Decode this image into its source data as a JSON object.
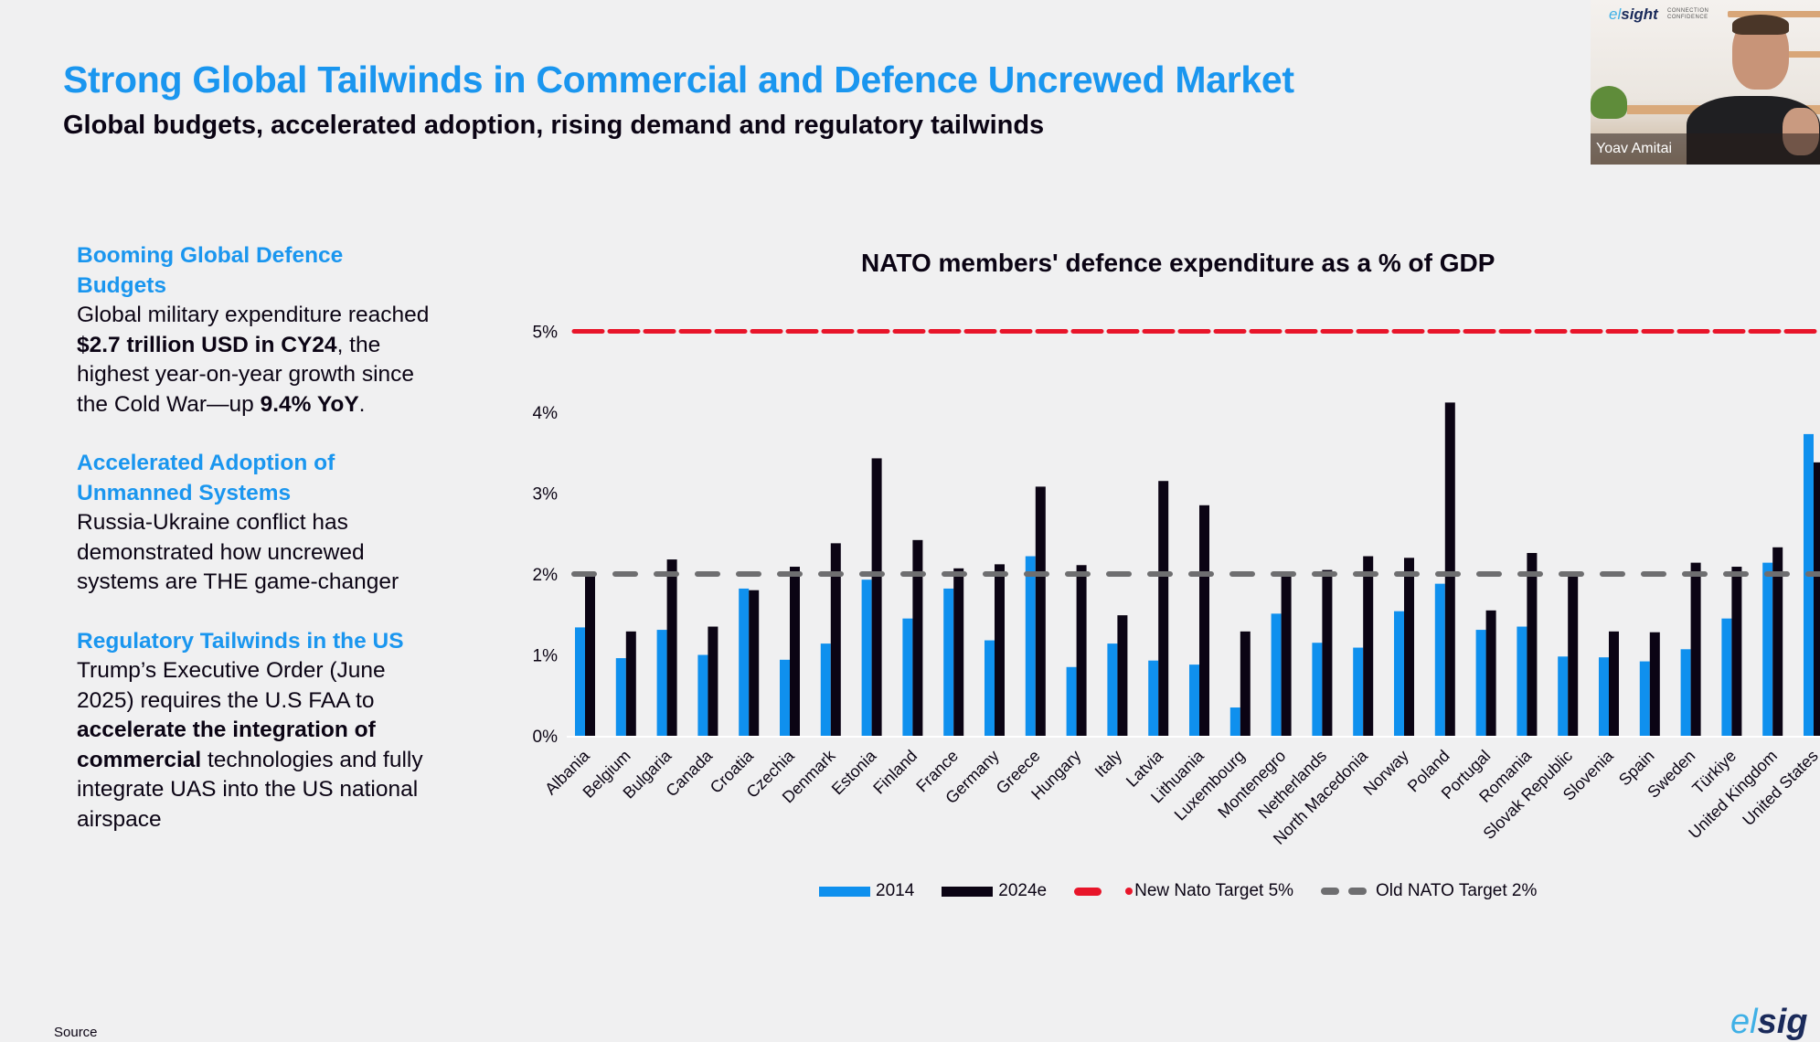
{
  "slide": {
    "title": "Strong Global Tailwinds in Commercial and Defence Uncrewed Market",
    "subtitle": "Global budgets, accelerated adoption, rising demand and regulatory tailwinds",
    "source_label": "Source",
    "footer_logo": {
      "prefix": "el",
      "suffix": "sig"
    }
  },
  "left_panel": {
    "sections": [
      {
        "heading": "Booming Global Defence Budgets",
        "body": [
          {
            "text": "Global military expenditure reached ",
            "bold": false
          },
          {
            "text": "$2.7 trillion USD in CY24",
            "bold": true
          },
          {
            "text": ", the highest year-on-year growth since the Cold War—up ",
            "bold": false
          },
          {
            "text": "9.4% YoY",
            "bold": true
          },
          {
            "text": ".",
            "bold": false
          }
        ]
      },
      {
        "heading": "Accelerated Adoption of Unmanned Systems",
        "body": [
          {
            "text": "Russia-Ukraine conflict has demonstrated how uncrewed systems are THE game-changer",
            "bold": false
          }
        ]
      },
      {
        "heading": "Regulatory Tailwinds in the US",
        "body": [
          {
            "text": "Trump’s Executive Order (June 2025) requires the U.S FAA to ",
            "bold": false
          },
          {
            "text": "accelerate the integration of commercial",
            "bold": true
          },
          {
            "text": " technologies and fully integrate UAS into the US national airspace",
            "bold": false
          }
        ]
      }
    ]
  },
  "webcam": {
    "participant_name": "Yoav Amitai",
    "logo_prefix": "el",
    "logo_suffix": "sight",
    "tagline": [
      "CONNECTION",
      "CONFIDENCE"
    ]
  },
  "colors": {
    "accent_blue": "#1a96ef",
    "series_2014": "#0f90ee",
    "series_2024e": "#0b0414",
    "new_target": "#e8152a",
    "old_target": "#6e6e70",
    "background": "#f0f0f1"
  },
  "chart_data": {
    "type": "bar",
    "title": "NATO members' defence expenditure as a % of GDP",
    "xlabel": "",
    "ylabel": "",
    "ylim": [
      0,
      5
    ],
    "yticks": [
      "0%",
      "1%",
      "2%",
      "3%",
      "4%",
      "5%"
    ],
    "grid": false,
    "legend_position": "bottom",
    "categories": [
      "Albania",
      "Belgium",
      "Bulgaria",
      "Canada",
      "Croatia",
      "Czechia",
      "Denmark",
      "Estonia",
      "Finland",
      "France",
      "Germany",
      "Greece",
      "Hungary",
      "Italy",
      "Latvia",
      "Lithuania",
      "Luxembourg",
      "Montenegro",
      "Netherlands",
      "North Macedonia",
      "Norway",
      "Poland",
      "Portugal",
      "Romania",
      "Slovak Republic",
      "Slovenia",
      "Spain",
      "Sweden",
      "Türkiye",
      "United Kingdom",
      "United States"
    ],
    "series": [
      {
        "name": "2014",
        "values": [
          1.34,
          0.96,
          1.31,
          1.0,
          1.82,
          0.94,
          1.14,
          1.93,
          1.45,
          1.82,
          1.18,
          2.22,
          0.85,
          1.14,
          0.93,
          0.88,
          0.35,
          1.51,
          1.15,
          1.09,
          1.54,
          1.88,
          1.31,
          1.35,
          0.98,
          0.97,
          0.92,
          1.07,
          1.45,
          2.14,
          3.73
        ]
      },
      {
        "name": "2024e",
        "values": [
          1.98,
          1.29,
          2.18,
          1.35,
          1.8,
          2.09,
          2.38,
          3.43,
          2.42,
          2.07,
          2.12,
          3.08,
          2.11,
          1.49,
          3.15,
          2.85,
          1.29,
          1.98,
          2.05,
          2.22,
          2.2,
          4.12,
          1.55,
          2.26,
          1.98,
          1.29,
          1.28,
          2.14,
          2.09,
          2.33,
          3.38
        ]
      }
    ],
    "reference_lines": [
      {
        "name": "New Nato Target 5%",
        "value": 5,
        "style": "dashed"
      },
      {
        "name": "Old NATO Target 2%",
        "value": 2,
        "style": "dashed"
      }
    ],
    "legend": [
      "2014",
      "2024e",
      "New Nato Target 5%",
      "Old NATO Target 2%"
    ]
  }
}
